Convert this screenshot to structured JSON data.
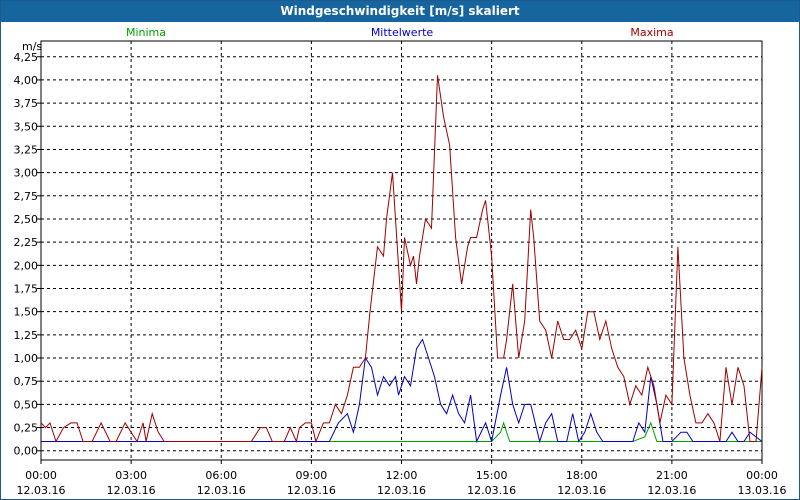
{
  "window": {
    "title": "Windgeschwindigkeit [m/s] skaliert"
  },
  "colors": {
    "minima": "#00a000",
    "mittelwerte": "#0000c0",
    "maxima": "#a00000",
    "titlebar": "#17659f"
  },
  "chart_data": {
    "type": "line",
    "ylabel": "m/s",
    "ylim": [
      0,
      4.25
    ],
    "yticks": [
      "0,00",
      "0,25",
      "0,50",
      "0,75",
      "1,00",
      "1,25",
      "1,50",
      "1,75",
      "2,00",
      "2,25",
      "2,50",
      "2,75",
      "3,00",
      "3,25",
      "3,50",
      "3,75",
      "4,00",
      "4,25"
    ],
    "xticks": [
      {
        "time": "00:00",
        "date": "12.03.16"
      },
      {
        "time": "03:00",
        "date": "12.03.16"
      },
      {
        "time": "06:00",
        "date": "12.03.16"
      },
      {
        "time": "09:00",
        "date": "12.03.16"
      },
      {
        "time": "12:00",
        "date": "12.03.16"
      },
      {
        "time": "15:00",
        "date": "12.03.16"
      },
      {
        "time": "18:00",
        "date": "12.03.16"
      },
      {
        "time": "21:00",
        "date": "12.03.16"
      },
      {
        "time": "00:00",
        "date": "13.03.16"
      }
    ],
    "grid": true,
    "x_hours_range": [
      0,
      24
    ],
    "series": [
      {
        "name": "Minima",
        "color": "#00a000",
        "points": [
          [
            0,
            0.1
          ],
          [
            15.0,
            0.1
          ],
          [
            15.3,
            0.2
          ],
          [
            15.4,
            0.3
          ],
          [
            15.6,
            0.1
          ],
          [
            19.5,
            0.1
          ],
          [
            19.7,
            0.1
          ],
          [
            20.1,
            0.15
          ],
          [
            20.3,
            0.3
          ],
          [
            20.5,
            0.1
          ],
          [
            24,
            0.1
          ]
        ]
      },
      {
        "name": "Mittelwerte",
        "color": "#0000c0",
        "points": [
          [
            0,
            0.1
          ],
          [
            9.0,
            0.1
          ],
          [
            9.6,
            0.1
          ],
          [
            9.9,
            0.3
          ],
          [
            10.2,
            0.4
          ],
          [
            10.4,
            0.2
          ],
          [
            10.6,
            0.5
          ],
          [
            10.8,
            1.0
          ],
          [
            11.0,
            0.9
          ],
          [
            11.2,
            0.6
          ],
          [
            11.4,
            0.8
          ],
          [
            11.6,
            0.7
          ],
          [
            11.8,
            0.8
          ],
          [
            11.9,
            0.6
          ],
          [
            12.1,
            0.8
          ],
          [
            12.3,
            0.7
          ],
          [
            12.5,
            1.1
          ],
          [
            12.7,
            1.2
          ],
          [
            12.9,
            1.0
          ],
          [
            13.1,
            0.8
          ],
          [
            13.3,
            0.5
          ],
          [
            13.5,
            0.4
          ],
          [
            13.7,
            0.6
          ],
          [
            13.9,
            0.4
          ],
          [
            14.1,
            0.3
          ],
          [
            14.3,
            0.6
          ],
          [
            14.5,
            0.1
          ],
          [
            14.8,
            0.3
          ],
          [
            15.0,
            0.1
          ],
          [
            15.3,
            0.6
          ],
          [
            15.5,
            0.9
          ],
          [
            15.7,
            0.5
          ],
          [
            15.9,
            0.3
          ],
          [
            16.1,
            0.5
          ],
          [
            16.3,
            0.5
          ],
          [
            16.6,
            0.1
          ],
          [
            16.8,
            0.3
          ],
          [
            17.0,
            0.4
          ],
          [
            17.2,
            0.1
          ],
          [
            17.5,
            0.1
          ],
          [
            17.7,
            0.4
          ],
          [
            17.9,
            0.1
          ],
          [
            18.1,
            0.2
          ],
          [
            18.3,
            0.4
          ],
          [
            18.5,
            0.2
          ],
          [
            18.7,
            0.1
          ],
          [
            19.7,
            0.1
          ],
          [
            19.9,
            0.3
          ],
          [
            20.1,
            0.2
          ],
          [
            20.3,
            0.8
          ],
          [
            20.5,
            0.5
          ],
          [
            20.7,
            0.1
          ],
          [
            21.0,
            0.1
          ],
          [
            21.3,
            0.2
          ],
          [
            21.5,
            0.2
          ],
          [
            21.7,
            0.1
          ],
          [
            22.8,
            0.1
          ],
          [
            23.0,
            0.2
          ],
          [
            23.2,
            0.1
          ],
          [
            23.4,
            0.1
          ],
          [
            23.6,
            0.2
          ],
          [
            24,
            0.1
          ]
        ]
      },
      {
        "name": "Maxima",
        "color": "#a00000",
        "points": [
          [
            0,
            0.3
          ],
          [
            0.15,
            0.25
          ],
          [
            0.3,
            0.3
          ],
          [
            0.5,
            0.1
          ],
          [
            0.75,
            0.25
          ],
          [
            1.0,
            0.3
          ],
          [
            1.2,
            0.3
          ],
          [
            1.4,
            0.1
          ],
          [
            1.7,
            0.1
          ],
          [
            2.0,
            0.3
          ],
          [
            2.3,
            0.1
          ],
          [
            2.5,
            0.1
          ],
          [
            2.8,
            0.3
          ],
          [
            3.0,
            0.2
          ],
          [
            3.2,
            0.1
          ],
          [
            3.4,
            0.3
          ],
          [
            3.5,
            0.1
          ],
          [
            3.7,
            0.4
          ],
          [
            3.9,
            0.2
          ],
          [
            4.1,
            0.1
          ],
          [
            7.0,
            0.1
          ],
          [
            7.3,
            0.25
          ],
          [
            7.5,
            0.25
          ],
          [
            7.7,
            0.1
          ],
          [
            8.1,
            0.1
          ],
          [
            8.3,
            0.25
          ],
          [
            8.5,
            0.1
          ],
          [
            8.6,
            0.25
          ],
          [
            8.8,
            0.3
          ],
          [
            9.0,
            0.3
          ],
          [
            9.15,
            0.1
          ],
          [
            9.4,
            0.3
          ],
          [
            9.6,
            0.3
          ],
          [
            9.8,
            0.5
          ],
          [
            10.0,
            0.4
          ],
          [
            10.2,
            0.6
          ],
          [
            10.4,
            0.9
          ],
          [
            10.6,
            0.9
          ],
          [
            10.8,
            1.0
          ],
          [
            10.95,
            1.5
          ],
          [
            11.2,
            2.2
          ],
          [
            11.4,
            2.1
          ],
          [
            11.5,
            2.5
          ],
          [
            11.7,
            3.0
          ],
          [
            11.9,
            2.0
          ],
          [
            12.0,
            1.5
          ],
          [
            12.1,
            2.3
          ],
          [
            12.3,
            2.0
          ],
          [
            12.4,
            2.1
          ],
          [
            12.5,
            1.8
          ],
          [
            12.6,
            2.1
          ],
          [
            12.8,
            2.5
          ],
          [
            13.0,
            2.4
          ],
          [
            13.2,
            4.05
          ],
          [
            13.4,
            3.6
          ],
          [
            13.6,
            3.3
          ],
          [
            13.8,
            2.3
          ],
          [
            14.0,
            1.8
          ],
          [
            14.2,
            2.2
          ],
          [
            14.3,
            2.3
          ],
          [
            14.5,
            2.3
          ],
          [
            14.7,
            2.6
          ],
          [
            14.8,
            2.7
          ],
          [
            15.0,
            2.1
          ],
          [
            15.2,
            1.0
          ],
          [
            15.4,
            1.0
          ],
          [
            15.5,
            1.2
          ],
          [
            15.7,
            1.8
          ],
          [
            15.9,
            1.0
          ],
          [
            16.1,
            1.4
          ],
          [
            16.3,
            2.6
          ],
          [
            16.4,
            2.3
          ],
          [
            16.6,
            1.4
          ],
          [
            16.8,
            1.3
          ],
          [
            17.0,
            1.0
          ],
          [
            17.2,
            1.4
          ],
          [
            17.4,
            1.2
          ],
          [
            17.6,
            1.2
          ],
          [
            17.8,
            1.3
          ],
          [
            18.0,
            1.1
          ],
          [
            18.2,
            1.5
          ],
          [
            18.4,
            1.5
          ],
          [
            18.6,
            1.2
          ],
          [
            18.8,
            1.4
          ],
          [
            19.0,
            1.1
          ],
          [
            19.2,
            0.9
          ],
          [
            19.4,
            0.8
          ],
          [
            19.6,
            0.5
          ],
          [
            19.8,
            0.7
          ],
          [
            20.0,
            0.6
          ],
          [
            20.2,
            0.9
          ],
          [
            20.4,
            0.7
          ],
          [
            20.6,
            0.3
          ],
          [
            20.8,
            0.6
          ],
          [
            21.0,
            0.5
          ],
          [
            21.2,
            2.2
          ],
          [
            21.4,
            1.0
          ],
          [
            21.6,
            0.6
          ],
          [
            21.8,
            0.3
          ],
          [
            22.0,
            0.3
          ],
          [
            22.2,
            0.4
          ],
          [
            22.4,
            0.3
          ],
          [
            22.6,
            0.1
          ],
          [
            22.8,
            0.9
          ],
          [
            23.0,
            0.5
          ],
          [
            23.2,
            0.9
          ],
          [
            23.4,
            0.7
          ],
          [
            23.6,
            0.1
          ],
          [
            23.8,
            0.1
          ],
          [
            24,
            0.9
          ]
        ]
      }
    ]
  }
}
